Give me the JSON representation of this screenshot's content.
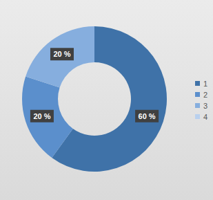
{
  "chart_data": {
    "type": "pie",
    "categories": [
      "1",
      "2",
      "3",
      "4"
    ],
    "values": [
      60,
      20,
      20,
      0
    ],
    "value_labels": [
      "60 %",
      "20 %",
      "20 %",
      null
    ],
    "colors": [
      "#3f72a8",
      "#5b8fcc",
      "#86aede",
      "#b9d0ee"
    ],
    "data_labels": true,
    "legend": "right"
  }
}
